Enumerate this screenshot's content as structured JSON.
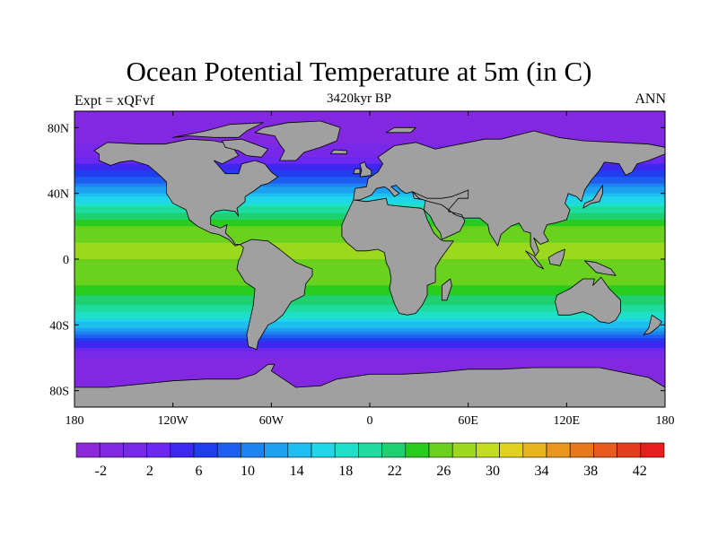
{
  "header": {
    "title": "Ocean Potential Temperature at 5m (in C)",
    "subtitle": "3420kyr BP",
    "left_label": "Expt = xQFvf",
    "right_label": "ANN"
  },
  "chart_data": {
    "type": "heatmap",
    "title": "Ocean Potential Temperature at 5m (in C)",
    "variable": "Ocean potential temperature",
    "units": "C",
    "depth": "5m",
    "xlim": [
      -180,
      180
    ],
    "ylim": [
      -90,
      90
    ],
    "x_ticks": [
      {
        "value": -180,
        "label": "180"
      },
      {
        "value": -120,
        "label": "120W"
      },
      {
        "value": -60,
        "label": "60W"
      },
      {
        "value": 0,
        "label": "0"
      },
      {
        "value": 60,
        "label": "60E"
      },
      {
        "value": 120,
        "label": "120E"
      },
      {
        "value": 180,
        "label": "180"
      }
    ],
    "y_ticks": [
      {
        "value": 80,
        "label": "80N"
      },
      {
        "value": 40,
        "label": "40N"
      },
      {
        "value": 0,
        "label": "0"
      },
      {
        "value": -40,
        "label": "40S"
      },
      {
        "value": -80,
        "label": "80S"
      }
    ],
    "zonal_sst_profile": [
      {
        "lat": 90,
        "temp": -2
      },
      {
        "lat": 75,
        "temp": -1.5
      },
      {
        "lat": 62,
        "temp": 2
      },
      {
        "lat": 50,
        "temp": 8
      },
      {
        "lat": 40,
        "temp": 14
      },
      {
        "lat": 30,
        "temp": 21
      },
      {
        "lat": 20,
        "temp": 26
      },
      {
        "lat": 10,
        "temp": 28
      },
      {
        "lat": 0,
        "temp": 28
      },
      {
        "lat": -10,
        "temp": 27
      },
      {
        "lat": -20,
        "temp": 25
      },
      {
        "lat": -30,
        "temp": 21
      },
      {
        "lat": -40,
        "temp": 15
      },
      {
        "lat": -50,
        "temp": 6
      },
      {
        "lat": -60,
        "temp": 0
      },
      {
        "lat": -70,
        "temp": -1.5
      },
      {
        "lat": -90,
        "temp": -2
      }
    ],
    "colorbar": {
      "min": -4,
      "max": 44,
      "step": 2,
      "label_values": [
        -2,
        2,
        6,
        10,
        14,
        18,
        22,
        26,
        30,
        34,
        38,
        42
      ],
      "labels": [
        "-2",
        "2",
        "6",
        "10",
        "14",
        "18",
        "22",
        "26",
        "30",
        "34",
        "38",
        "42"
      ],
      "colors": [
        "#8c28d8",
        "#8228e0",
        "#7828e8",
        "#6a28f0",
        "#3c28f0",
        "#1e3ef0",
        "#1e5ef0",
        "#1e82f0",
        "#1ea0f0",
        "#1ebef0",
        "#1ed6e8",
        "#1ee0c8",
        "#1edca0",
        "#1ed070",
        "#28cc1e",
        "#6ad21e",
        "#9cd81e",
        "#c2dc1e",
        "#e0d21e",
        "#e8b41e",
        "#e8961e",
        "#e8781e",
        "#e85a1e",
        "#e83c1e",
        "#e81e1e"
      ]
    },
    "land_color": "#a0a0a0"
  }
}
